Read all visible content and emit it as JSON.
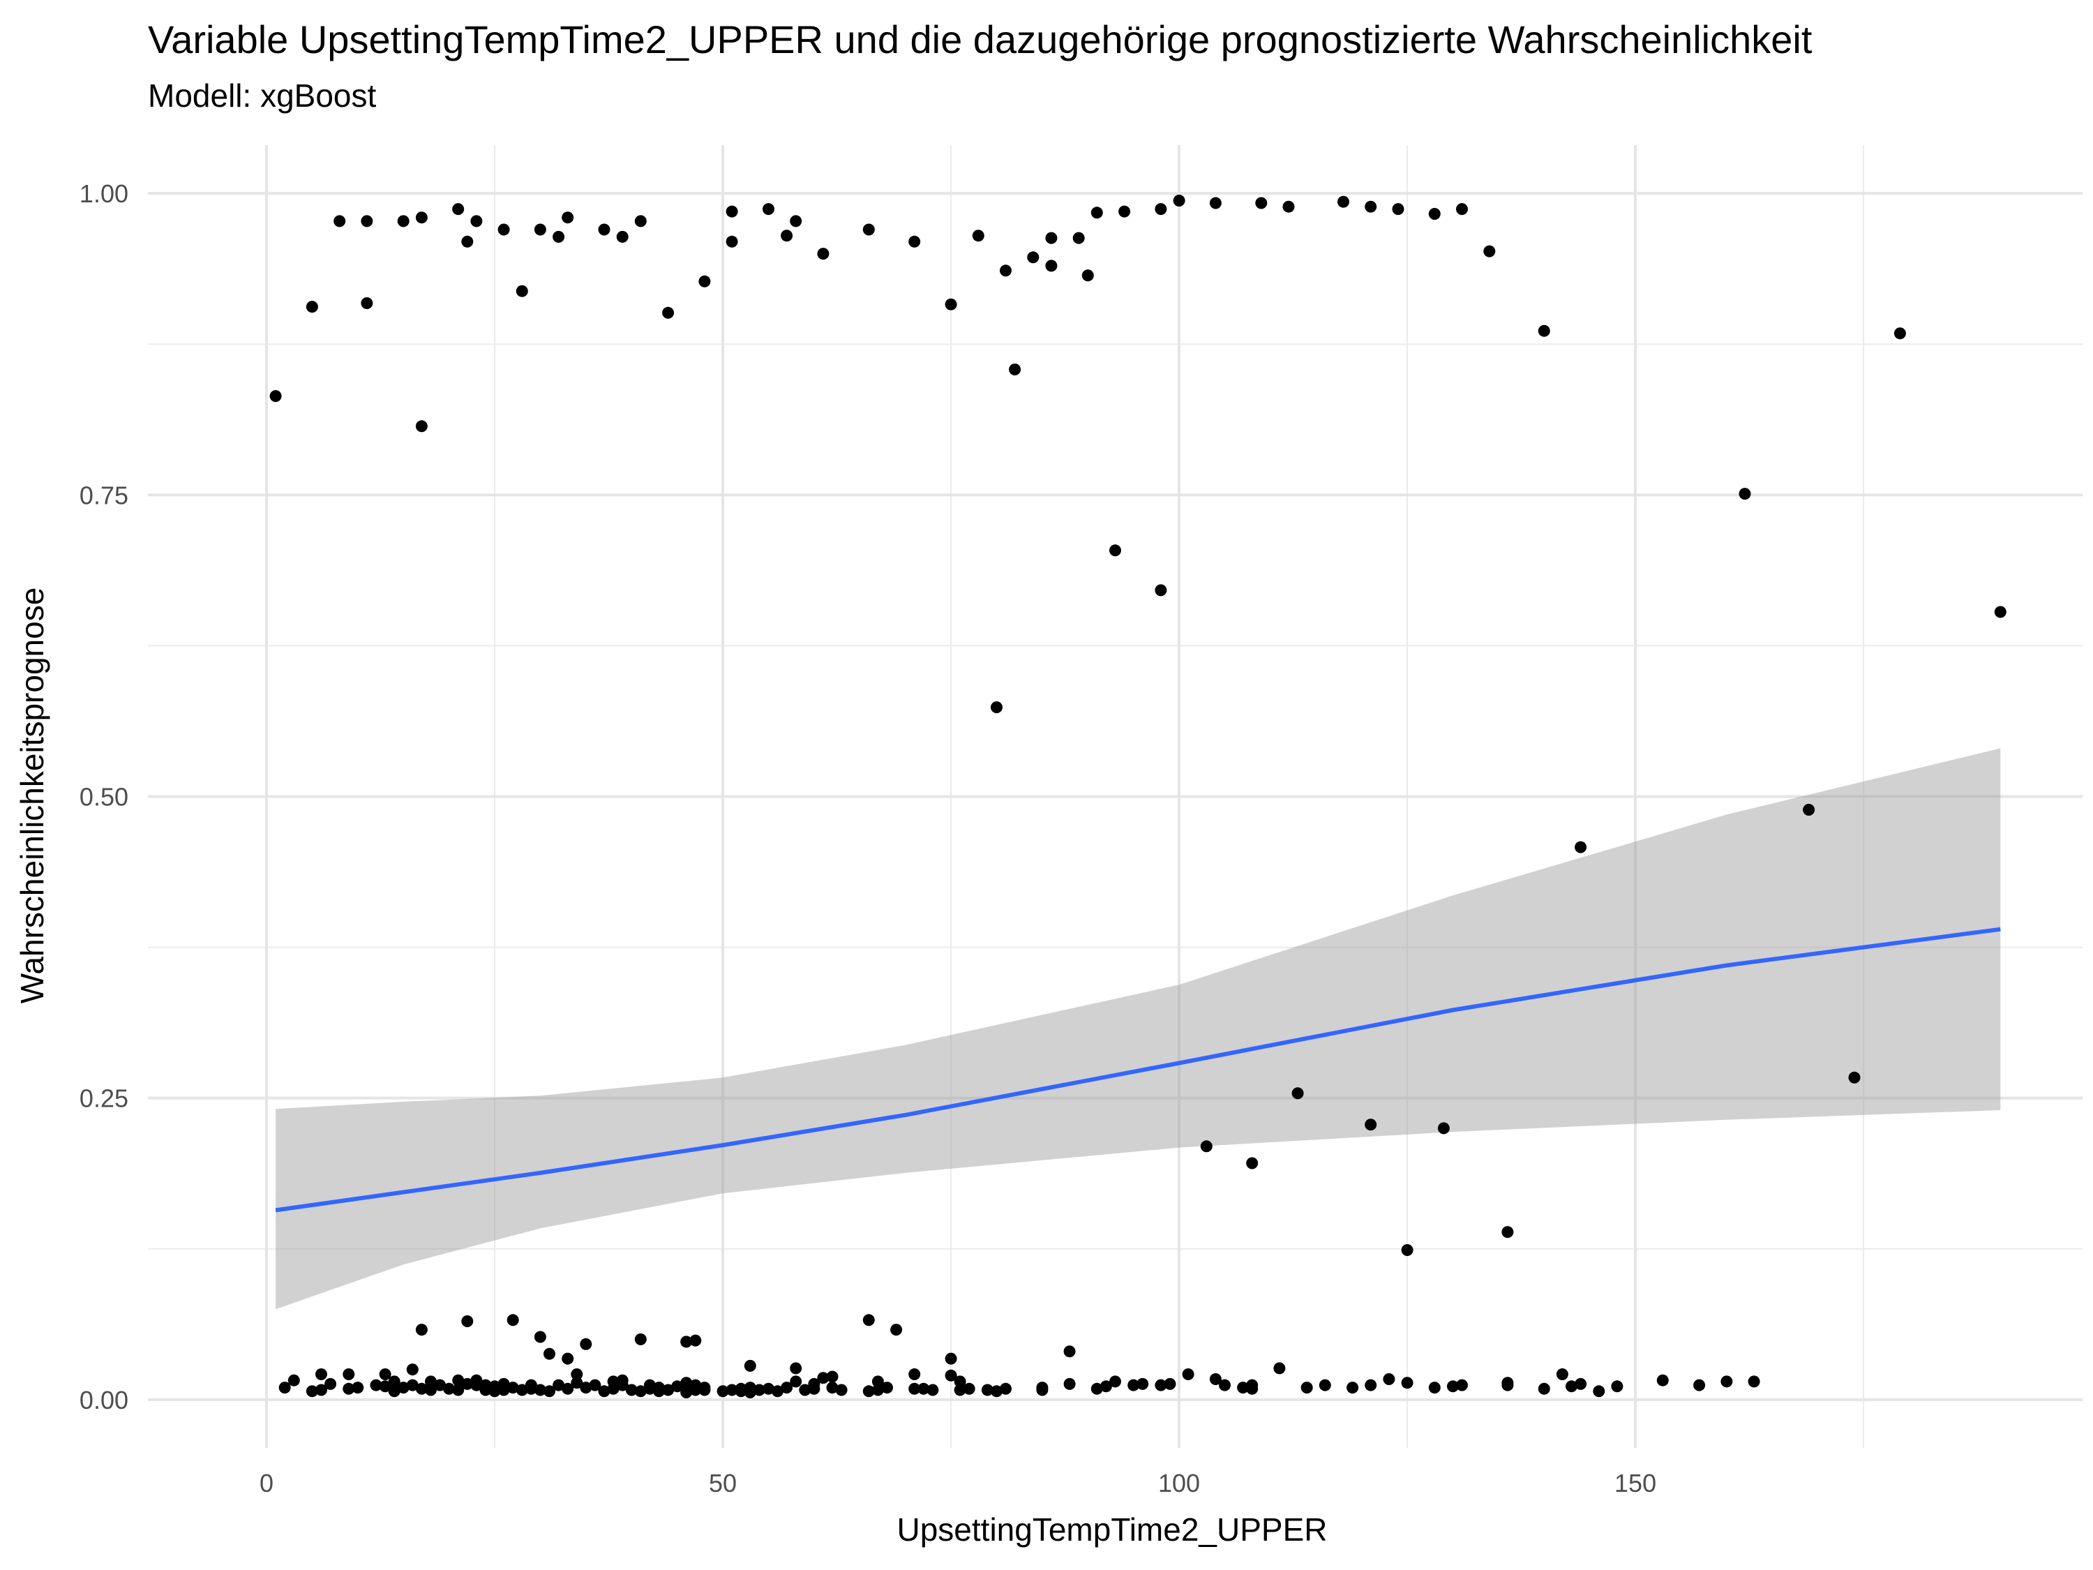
{
  "chart_data": {
    "type": "scatter",
    "title": "Variable UpsettingTempTime2_UPPER und die dazugehörige prognostizierte Wahrscheinlichkeit",
    "subtitle": "Modell: xgBoost",
    "xlabel": "UpsettingTempTime2_UPPER",
    "ylabel": "Wahrscheinlichkeitsprognose",
    "xlim": [
      -13,
      199
    ],
    "ylim": [
      -0.04,
      1.04
    ],
    "x_ticks": [
      0,
      50,
      100,
      150
    ],
    "x_tick_labels": [
      "0",
      "50",
      "100",
      "150"
    ],
    "y_ticks": [
      0,
      0.25,
      0.5,
      0.75,
      1.0
    ],
    "y_tick_labels": [
      "0.00",
      "0.25",
      "0.50",
      "0.75",
      "1.00"
    ],
    "grid": true,
    "points": [
      [
        1,
        0.832
      ],
      [
        5,
        0.906
      ],
      [
        8,
        0.977
      ],
      [
        11,
        0.909
      ],
      [
        11,
        0.977
      ],
      [
        15,
        0.977
      ],
      [
        17,
        0.98
      ],
      [
        17,
        0.807
      ],
      [
        21,
        0.987
      ],
      [
        22,
        0.96
      ],
      [
        23,
        0.977
      ],
      [
        26,
        0.97
      ],
      [
        28,
        0.919
      ],
      [
        30,
        0.97
      ],
      [
        32,
        0.964
      ],
      [
        33,
        0.98
      ],
      [
        37,
        0.97
      ],
      [
        39,
        0.964
      ],
      [
        41,
        0.977
      ],
      [
        44,
        0.901
      ],
      [
        48,
        0.927
      ],
      [
        51,
        0.985
      ],
      [
        51,
        0.96
      ],
      [
        55,
        0.987
      ],
      [
        57,
        0.965
      ],
      [
        58,
        0.977
      ],
      [
        61,
        0.95
      ],
      [
        66,
        0.97
      ],
      [
        71,
        0.96
      ],
      [
        75,
        0.908
      ],
      [
        78,
        0.965
      ],
      [
        81,
        0.936
      ],
      [
        82,
        0.854
      ],
      [
        84,
        0.947
      ],
      [
        86,
        0.963
      ],
      [
        86,
        0.94
      ],
      [
        89,
        0.963
      ],
      [
        90,
        0.932
      ],
      [
        91,
        0.984
      ],
      [
        94,
        0.985
      ],
      [
        98,
        0.987
      ],
      [
        100,
        0.994
      ],
      [
        104,
        0.992
      ],
      [
        109,
        0.992
      ],
      [
        112,
        0.989
      ],
      [
        118,
        0.993
      ],
      [
        121,
        0.989
      ],
      [
        124,
        0.987
      ],
      [
        128,
        0.983
      ],
      [
        131,
        0.987
      ],
      [
        134,
        0.952
      ],
      [
        140,
        0.886
      ],
      [
        93,
        0.704
      ],
      [
        98,
        0.671
      ],
      [
        80,
        0.574
      ],
      [
        144,
        0.458
      ],
      [
        162,
        0.751
      ],
      [
        169,
        0.489
      ],
      [
        179,
        0.884
      ],
      [
        190,
        0.653
      ],
      [
        174,
        0.267
      ],
      [
        113,
        0.254
      ],
      [
        103,
        0.21
      ],
      [
        108,
        0.196
      ],
      [
        121,
        0.228
      ],
      [
        129,
        0.225
      ],
      [
        125,
        0.124
      ],
      [
        136,
        0.139
      ],
      [
        17,
        0.058
      ],
      [
        22,
        0.065
      ],
      [
        27,
        0.066
      ],
      [
        30,
        0.052
      ],
      [
        31,
        0.038
      ],
      [
        33,
        0.034
      ],
      [
        35,
        0.046
      ],
      [
        41,
        0.05
      ],
      [
        46,
        0.048
      ],
      [
        47,
        0.049
      ],
      [
        66,
        0.066
      ],
      [
        69,
        0.058
      ],
      [
        75,
        0.034
      ],
      [
        88,
        0.04
      ],
      [
        53,
        0.028
      ],
      [
        58,
        0.026
      ],
      [
        16,
        0.025
      ],
      [
        111,
        0.026
      ],
      [
        101,
        0.021
      ],
      [
        142,
        0.021
      ],
      [
        2,
        0.01
      ],
      [
        3,
        0.016
      ],
      [
        5,
        0.007
      ],
      [
        6,
        0.021
      ],
      [
        6,
        0.008
      ],
      [
        7,
        0.013
      ],
      [
        9,
        0.021
      ],
      [
        9,
        0.009
      ],
      [
        10,
        0.01
      ],
      [
        12,
        0.012
      ],
      [
        13,
        0.011
      ],
      [
        13,
        0.021
      ],
      [
        14,
        0.007
      ],
      [
        14,
        0.015
      ],
      [
        15,
        0.01
      ],
      [
        16,
        0.012
      ],
      [
        17,
        0.009
      ],
      [
        18,
        0.015
      ],
      [
        18,
        0.008
      ],
      [
        19,
        0.012
      ],
      [
        20,
        0.009
      ],
      [
        21,
        0.016
      ],
      [
        21,
        0.008
      ],
      [
        22,
        0.013
      ],
      [
        23,
        0.012
      ],
      [
        23,
        0.016
      ],
      [
        24,
        0.012
      ],
      [
        24,
        0.008
      ],
      [
        25,
        0.011
      ],
      [
        25,
        0.007
      ],
      [
        26,
        0.013
      ],
      [
        26,
        0.008
      ],
      [
        27,
        0.01
      ],
      [
        28,
        0.008
      ],
      [
        29,
        0.012
      ],
      [
        29,
        0.009
      ],
      [
        30,
        0.008
      ],
      [
        31,
        0.007
      ],
      [
        32,
        0.012
      ],
      [
        33,
        0.009
      ],
      [
        34,
        0.014
      ],
      [
        34,
        0.021
      ],
      [
        35,
        0.01
      ],
      [
        36,
        0.012
      ],
      [
        37,
        0.007
      ],
      [
        38,
        0.009
      ],
      [
        38,
        0.015
      ],
      [
        39,
        0.016
      ],
      [
        39,
        0.012
      ],
      [
        40,
        0.008
      ],
      [
        41,
        0.007
      ],
      [
        42,
        0.012
      ],
      [
        42,
        0.009
      ],
      [
        43,
        0.01
      ],
      [
        43,
        0.007
      ],
      [
        44,
        0.008
      ],
      [
        45,
        0.011
      ],
      [
        46,
        0.014
      ],
      [
        46,
        0.006
      ],
      [
        47,
        0.012
      ],
      [
        47,
        0.008
      ],
      [
        48,
        0.01
      ],
      [
        48,
        0.008
      ],
      [
        50,
        0.007
      ],
      [
        51,
        0.008
      ],
      [
        52,
        0.009
      ],
      [
        52,
        0.007
      ],
      [
        53,
        0.01
      ],
      [
        53,
        0.006
      ],
      [
        54,
        0.008
      ],
      [
        55,
        0.009
      ],
      [
        56,
        0.007
      ],
      [
        57,
        0.01
      ],
      [
        58,
        0.015
      ],
      [
        59,
        0.008
      ],
      [
        60,
        0.013
      ],
      [
        60,
        0.009
      ],
      [
        61,
        0.018
      ],
      [
        62,
        0.019
      ],
      [
        62,
        0.01
      ],
      [
        63,
        0.008
      ],
      [
        66,
        0.007
      ],
      [
        67,
        0.015
      ],
      [
        67,
        0.008
      ],
      [
        68,
        0.01
      ],
      [
        71,
        0.021
      ],
      [
        71,
        0.009
      ],
      [
        72,
        0.009
      ],
      [
        73,
        0.008
      ],
      [
        75,
        0.02
      ],
      [
        76,
        0.015
      ],
      [
        76,
        0.008
      ],
      [
        77,
        0.009
      ],
      [
        79,
        0.008
      ],
      [
        80,
        0.007
      ],
      [
        81,
        0.009
      ],
      [
        85,
        0.01
      ],
      [
        85,
        0.008
      ],
      [
        88,
        0.013
      ],
      [
        91,
        0.009
      ],
      [
        92,
        0.011
      ],
      [
        93,
        0.015
      ],
      [
        95,
        0.012
      ],
      [
        96,
        0.013
      ],
      [
        98,
        0.012
      ],
      [
        99,
        0.013
      ],
      [
        104,
        0.017
      ],
      [
        105,
        0.012
      ],
      [
        107,
        0.01
      ],
      [
        108,
        0.012
      ],
      [
        108,
        0.009
      ],
      [
        114,
        0.01
      ],
      [
        116,
        0.012
      ],
      [
        119,
        0.01
      ],
      [
        121,
        0.012
      ],
      [
        123,
        0.017
      ],
      [
        125,
        0.014
      ],
      [
        128,
        0.01
      ],
      [
        130,
        0.011
      ],
      [
        131,
        0.012
      ],
      [
        136,
        0.014
      ],
      [
        136,
        0.012
      ],
      [
        140,
        0.009
      ],
      [
        143,
        0.011
      ],
      [
        144,
        0.013
      ],
      [
        146,
        0.007
      ],
      [
        148,
        0.011
      ],
      [
        153,
        0.016
      ],
      [
        157,
        0.012
      ],
      [
        160,
        0.015
      ],
      [
        163,
        0.015
      ]
    ],
    "smooth": {
      "method": "glm",
      "color": "#3366FF",
      "band_color": "#999999",
      "x": [
        1,
        15,
        30,
        50,
        70,
        100,
        130,
        160,
        190
      ],
      "fit": [
        0.157,
        0.172,
        0.188,
        0.211,
        0.236,
        0.279,
        0.323,
        0.36,
        0.39
      ],
      "lower": [
        0.075,
        0.112,
        0.142,
        0.171,
        0.188,
        0.209,
        0.222,
        0.232,
        0.24
      ],
      "upper": [
        0.241,
        0.247,
        0.252,
        0.267,
        0.294,
        0.344,
        0.418,
        0.485,
        0.54
      ]
    }
  }
}
